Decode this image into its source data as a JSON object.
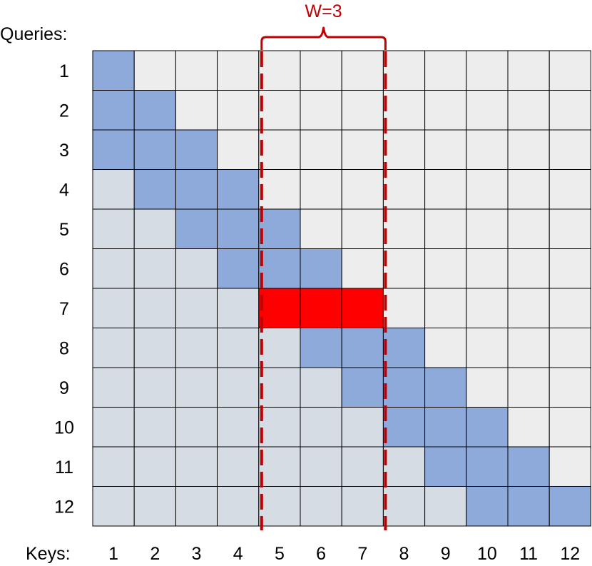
{
  "labels": {
    "queries": "Queries:",
    "keys": "Keys:",
    "window": "W=3"
  },
  "queries": [
    "1",
    "2",
    "3",
    "4",
    "5",
    "6",
    "7",
    "8",
    "9",
    "10",
    "11",
    "12"
  ],
  "keys": [
    "1",
    "2",
    "3",
    "4",
    "5",
    "6",
    "7",
    "8",
    "9",
    "10",
    "11",
    "12"
  ],
  "window_size": 3,
  "highlighted_query": 7,
  "highlighted_keys": [
    5,
    6,
    7
  ],
  "colors": {
    "window_cell": "#8eaadb",
    "past_cell": "#d6dce4",
    "future_cell": "#ededed",
    "highlight_cell": "#ff0000",
    "grid_line": "#000000",
    "window_marker": "#c00000"
  }
}
